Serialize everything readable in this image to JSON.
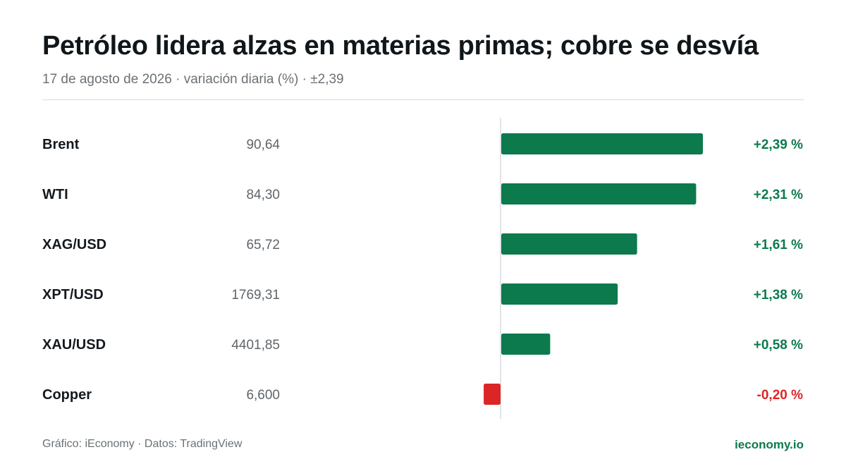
{
  "header": {
    "title": "Petróleo lidera alzas en materias primas; cobre se desvía",
    "subtitle": "17 de agosto de 2026 · variación diaria (%) · ±2,39"
  },
  "footer": {
    "source": "Gráfico: iEconomy · Datos: TradingView",
    "brand": "ieconomy.io"
  },
  "colors": {
    "positive": "#0c7a4d",
    "negative": "#dc2626",
    "axis": "#d9dcdf",
    "label": "#141a1f",
    "price": "#5f656b"
  },
  "chart_data": {
    "type": "bar",
    "orientation": "horizontal",
    "xlim": [
      -2.39,
      2.39
    ],
    "rows": [
      {
        "name": "Brent",
        "price": "90,64",
        "change": 2.39,
        "change_label": "+2,39 %"
      },
      {
        "name": "WTI",
        "price": "84,30",
        "change": 2.31,
        "change_label": "+2,31 %"
      },
      {
        "name": "XAG/USD",
        "price": "65,72",
        "change": 1.61,
        "change_label": "+1,61 %"
      },
      {
        "name": "XPT/USD",
        "price": "1769,31",
        "change": 1.38,
        "change_label": "+1,38 %"
      },
      {
        "name": "XAU/USD",
        "price": "4401,85",
        "change": 0.58,
        "change_label": "+0,58 %"
      },
      {
        "name": "Copper",
        "price": "6,600",
        "change": -0.2,
        "change_label": "-0,20 %"
      }
    ]
  }
}
